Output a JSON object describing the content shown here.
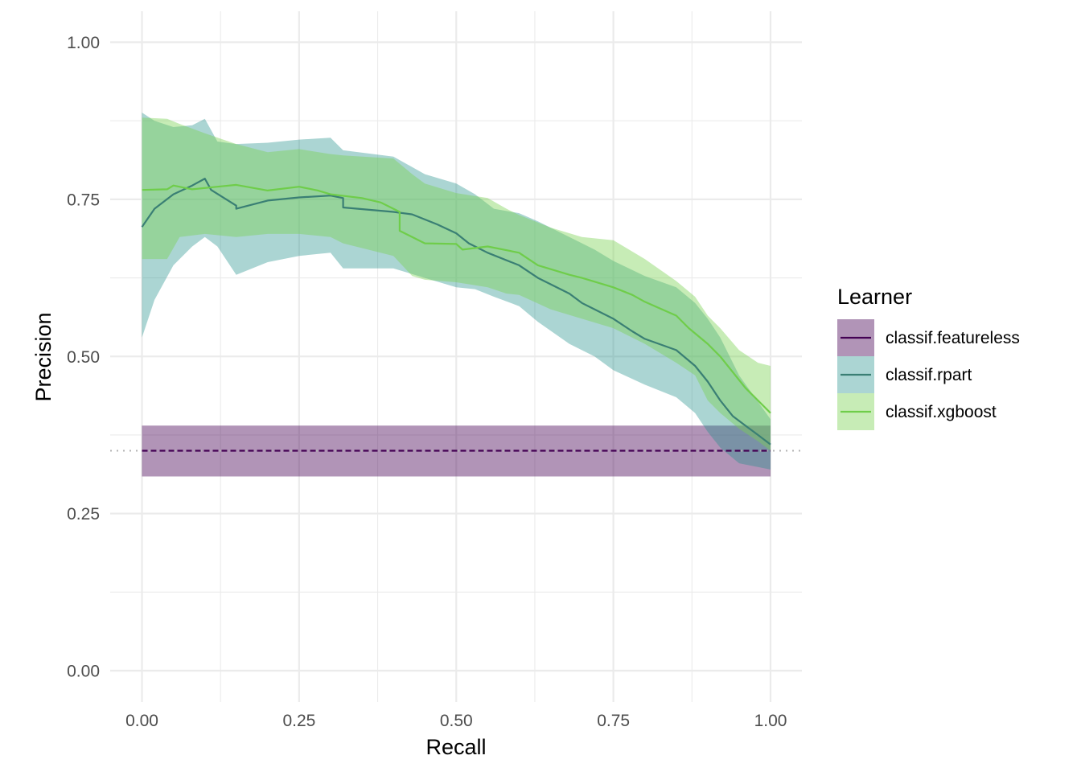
{
  "chart_data": {
    "type": "line",
    "title": "",
    "xlabel": "Recall",
    "ylabel": "Precision",
    "xlim": [
      0,
      1
    ],
    "ylim": [
      0,
      1
    ],
    "xticks": [
      "0.00",
      "0.25",
      "0.50",
      "0.75",
      "1.00"
    ],
    "yticks": [
      "0.00",
      "0.25",
      "0.50",
      "0.75",
      "1.00"
    ],
    "grid": true,
    "baseline": 0.35,
    "legend": {
      "title": "Learner",
      "position": "right"
    },
    "series": [
      {
        "name": "classif.featureless",
        "color": "#440154",
        "line_style": "dashed",
        "band_opacity": 0.42,
        "line": [
          [
            0,
            0.35
          ],
          [
            1,
            0.35
          ]
        ],
        "band": [
          [
            0,
            0.309,
            0.39
          ],
          [
            1,
            0.309,
            0.39
          ]
        ]
      },
      {
        "name": "classif.rpart",
        "color": "#21908c",
        "line_color": "#3a7f74",
        "line_style": "solid",
        "band_opacity": 0.38,
        "line": [
          [
            0,
            0.706
          ],
          [
            0.02,
            0.735
          ],
          [
            0.05,
            0.758
          ],
          [
            0.08,
            0.772
          ],
          [
            0.1,
            0.783
          ],
          [
            0.11,
            0.765
          ],
          [
            0.15,
            0.74
          ],
          [
            0.15,
            0.735
          ],
          [
            0.2,
            0.748
          ],
          [
            0.25,
            0.753
          ],
          [
            0.3,
            0.756
          ],
          [
            0.32,
            0.752
          ],
          [
            0.32,
            0.737
          ],
          [
            0.4,
            0.73
          ],
          [
            0.43,
            0.726
          ],
          [
            0.47,
            0.71
          ],
          [
            0.5,
            0.696
          ],
          [
            0.52,
            0.68
          ],
          [
            0.55,
            0.665
          ],
          [
            0.6,
            0.645
          ],
          [
            0.63,
            0.625
          ],
          [
            0.68,
            0.6
          ],
          [
            0.7,
            0.585
          ],
          [
            0.75,
            0.56
          ],
          [
            0.78,
            0.54
          ],
          [
            0.8,
            0.528
          ],
          [
            0.85,
            0.51
          ],
          [
            0.88,
            0.485
          ],
          [
            0.9,
            0.46
          ],
          [
            0.92,
            0.43
          ],
          [
            0.94,
            0.405
          ],
          [
            0.96,
            0.39
          ],
          [
            0.98,
            0.375
          ],
          [
            1.0,
            0.36
          ]
        ],
        "band": [
          [
            0,
            0.53,
            0.888
          ],
          [
            0.02,
            0.59,
            0.875
          ],
          [
            0.05,
            0.645,
            0.865
          ],
          [
            0.08,
            0.675,
            0.868
          ],
          [
            0.1,
            0.69,
            0.878
          ],
          [
            0.12,
            0.675,
            0.842
          ],
          [
            0.15,
            0.63,
            0.838
          ],
          [
            0.2,
            0.65,
            0.84
          ],
          [
            0.25,
            0.66,
            0.845
          ],
          [
            0.3,
            0.665,
            0.848
          ],
          [
            0.32,
            0.64,
            0.828
          ],
          [
            0.4,
            0.64,
            0.818
          ],
          [
            0.45,
            0.625,
            0.79
          ],
          [
            0.5,
            0.61,
            0.775
          ],
          [
            0.53,
            0.607,
            0.758
          ],
          [
            0.56,
            0.595,
            0.735
          ],
          [
            0.6,
            0.58,
            0.728
          ],
          [
            0.63,
            0.555,
            0.715
          ],
          [
            0.68,
            0.52,
            0.69
          ],
          [
            0.72,
            0.5,
            0.67
          ],
          [
            0.75,
            0.478,
            0.652
          ],
          [
            0.8,
            0.455,
            0.628
          ],
          [
            0.85,
            0.435,
            0.61
          ],
          [
            0.88,
            0.41,
            0.585
          ],
          [
            0.9,
            0.38,
            0.56
          ],
          [
            0.92,
            0.355,
            0.53
          ],
          [
            0.95,
            0.33,
            0.47
          ],
          [
            1.0,
            0.32,
            0.4
          ]
        ]
      },
      {
        "name": "classif.xgboost",
        "color": "#7ad151",
        "line_color": "#6fcd4a",
        "line_style": "solid",
        "band_opacity": 0.42,
        "line": [
          [
            0,
            0.765
          ],
          [
            0.04,
            0.766
          ],
          [
            0.05,
            0.772
          ],
          [
            0.08,
            0.766
          ],
          [
            0.12,
            0.77
          ],
          [
            0.15,
            0.773
          ],
          [
            0.2,
            0.764
          ],
          [
            0.25,
            0.77
          ],
          [
            0.28,
            0.764
          ],
          [
            0.3,
            0.758
          ],
          [
            0.35,
            0.752
          ],
          [
            0.38,
            0.745
          ],
          [
            0.41,
            0.73
          ],
          [
            0.41,
            0.7
          ],
          [
            0.45,
            0.68
          ],
          [
            0.5,
            0.679
          ],
          [
            0.51,
            0.67
          ],
          [
            0.55,
            0.675
          ],
          [
            0.6,
            0.665
          ],
          [
            0.63,
            0.645
          ],
          [
            0.68,
            0.63
          ],
          [
            0.7,
            0.625
          ],
          [
            0.75,
            0.61
          ],
          [
            0.78,
            0.598
          ],
          [
            0.8,
            0.587
          ],
          [
            0.85,
            0.565
          ],
          [
            0.87,
            0.545
          ],
          [
            0.9,
            0.52
          ],
          [
            0.92,
            0.5
          ],
          [
            0.94,
            0.475
          ],
          [
            0.96,
            0.45
          ],
          [
            0.98,
            0.43
          ],
          [
            1.0,
            0.41
          ]
        ],
        "band": [
          [
            0,
            0.655,
            0.88
          ],
          [
            0.04,
            0.655,
            0.878
          ],
          [
            0.06,
            0.69,
            0.87
          ],
          [
            0.1,
            0.695,
            0.855
          ],
          [
            0.15,
            0.69,
            0.838
          ],
          [
            0.2,
            0.695,
            0.825
          ],
          [
            0.25,
            0.695,
            0.83
          ],
          [
            0.3,
            0.69,
            0.822
          ],
          [
            0.32,
            0.68,
            0.82
          ],
          [
            0.4,
            0.66,
            0.815
          ],
          [
            0.43,
            0.628,
            0.79
          ],
          [
            0.45,
            0.622,
            0.775
          ],
          [
            0.5,
            0.618,
            0.76
          ],
          [
            0.55,
            0.61,
            0.752
          ],
          [
            0.58,
            0.6,
            0.735
          ],
          [
            0.6,
            0.598,
            0.725
          ],
          [
            0.65,
            0.575,
            0.705
          ],
          [
            0.7,
            0.56,
            0.69
          ],
          [
            0.75,
            0.545,
            0.685
          ],
          [
            0.8,
            0.52,
            0.655
          ],
          [
            0.85,
            0.49,
            0.62
          ],
          [
            0.88,
            0.47,
            0.595
          ],
          [
            0.9,
            0.43,
            0.565
          ],
          [
            0.92,
            0.41,
            0.545
          ],
          [
            0.95,
            0.385,
            0.51
          ],
          [
            0.98,
            0.365,
            0.49
          ],
          [
            1.0,
            0.35,
            0.485
          ]
        ]
      }
    ]
  }
}
